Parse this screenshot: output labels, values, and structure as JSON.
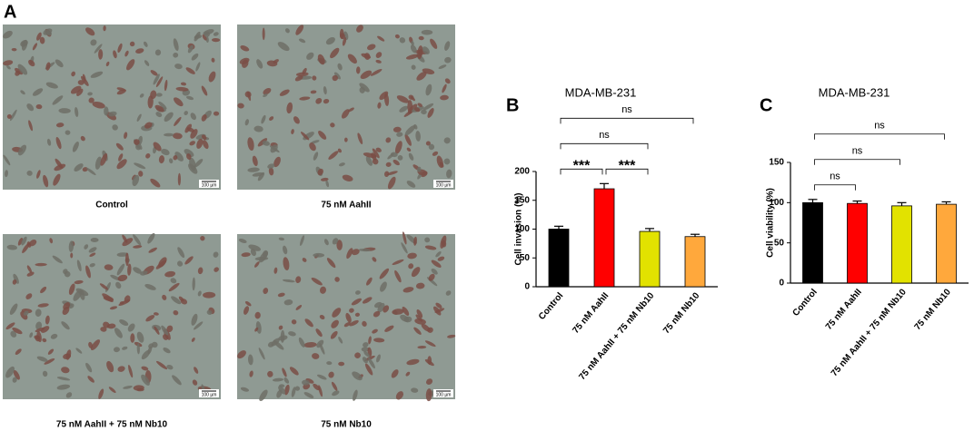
{
  "figure": {
    "panel_labels": [
      "A",
      "B",
      "C"
    ],
    "images": [
      {
        "caption": "Control",
        "scale_bar": "100 µm"
      },
      {
        "caption": "75 nM AahII",
        "scale_bar": "100 µm"
      },
      {
        "caption": "75 nM AahII + 75 nM Nb10",
        "scale_bar": "100 µm"
      },
      {
        "caption": "75 nM Nb10",
        "scale_bar": "100 µm"
      }
    ]
  },
  "chart_data": [
    {
      "type": "bar",
      "title": "MDA-MB-231",
      "y_label": "Cell invasion (%)",
      "categories": [
        "Control",
        "75 nM AahII",
        "75 nM AahII + 75 nM Nb10",
        "75 nM Nb10"
      ],
      "values": [
        100,
        170,
        96,
        87
      ],
      "errors": [
        5,
        9,
        5,
        4
      ],
      "colors": [
        "#000000",
        "#ff0000",
        "#e2e200",
        "#ffa83c"
      ],
      "ylim": [
        0,
        200
      ],
      "yticks": [
        0,
        50,
        100,
        150,
        200
      ],
      "annotations": [
        {
          "between": [
            "Control",
            "75 nM AahII"
          ],
          "label": "***"
        },
        {
          "between": [
            "75 nM AahII",
            "75 nM AahII + 75 nM Nb10"
          ],
          "label": "***"
        },
        {
          "between": [
            "Control",
            "75 nM AahII + 75 nM Nb10"
          ],
          "label": "ns"
        },
        {
          "between": [
            "Control",
            "75 nM Nb10"
          ],
          "label": "ns"
        }
      ]
    },
    {
      "type": "bar",
      "title": "MDA-MB-231",
      "y_label": "Cell viability (%)",
      "categories": [
        "Control",
        "75 nM AahII",
        "75 nM AahII + 75 nM Nb10",
        "75 nM Nb10"
      ],
      "values": [
        100,
        99,
        96,
        98
      ],
      "errors": [
        4,
        3,
        4,
        3
      ],
      "colors": [
        "#000000",
        "#ff0000",
        "#e2e200",
        "#ffa83c"
      ],
      "ylim": [
        0,
        150
      ],
      "yticks": [
        0,
        50,
        100,
        150
      ],
      "annotations": [
        {
          "between": [
            "Control",
            "75 nM AahII"
          ],
          "label": "ns"
        },
        {
          "between": [
            "Control",
            "75 nM AahII + 75 nM Nb10"
          ],
          "label": "ns"
        },
        {
          "between": [
            "Control",
            "75 nM Nb10"
          ],
          "label": "ns"
        }
      ]
    }
  ]
}
